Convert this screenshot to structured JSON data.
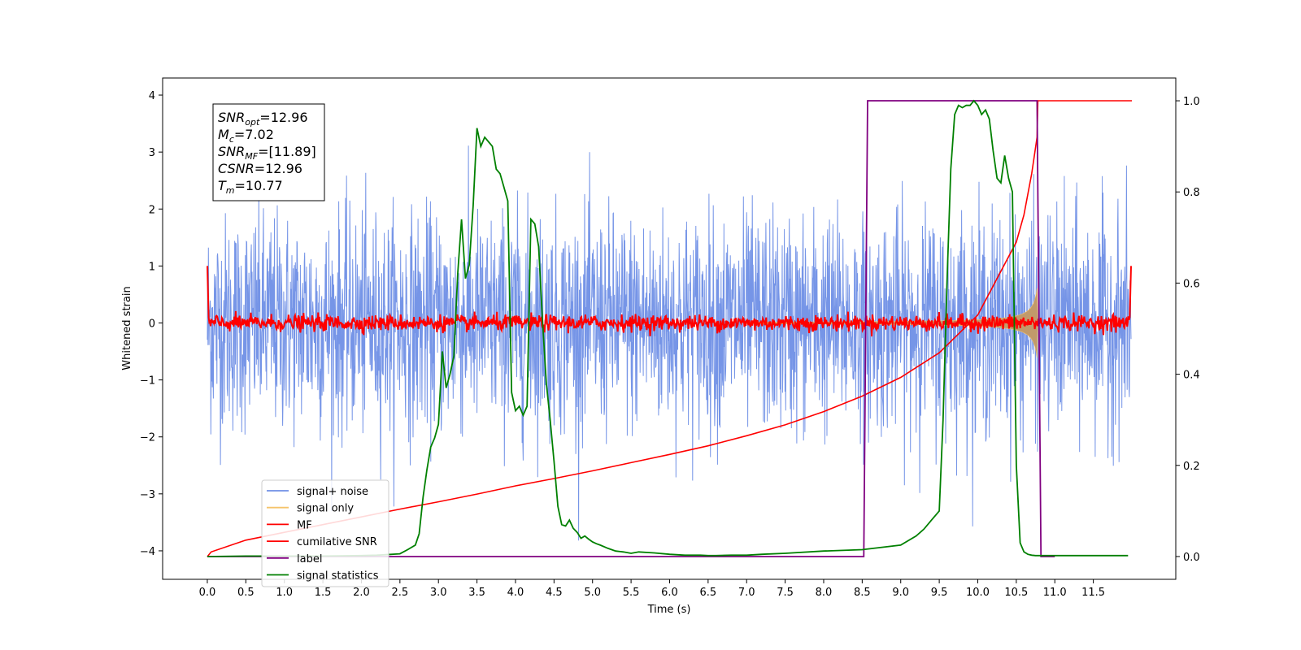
{
  "chart_data": {
    "type": "line",
    "xlabel": "Time (s)",
    "ylabel": "Whitened strain",
    "x_ticks": [
      "0.0",
      "0.5",
      "1.0",
      "1.5",
      "2.0",
      "2.5",
      "3.0",
      "3.5",
      "4.0",
      "4.5",
      "5.0",
      "5.5",
      "6.0",
      "6.5",
      "7.0",
      "7.5",
      "8.0",
      "8.5",
      "9.0",
      "9.5",
      "10.0",
      "10.5",
      "11.0",
      "11.5"
    ],
    "x_tick_values": [
      0,
      0.5,
      1,
      1.5,
      2,
      2.5,
      3,
      3.5,
      4,
      4.5,
      5,
      5.5,
      6,
      6.5,
      7,
      7.5,
      8,
      8.5,
      9,
      9.5,
      10,
      10.5,
      11,
      11.5
    ],
    "y_left_ticks": [
      "−4",
      "−3",
      "−2",
      "−1",
      "0",
      "1",
      "2",
      "3",
      "4"
    ],
    "y_left_tick_values": [
      -4,
      -3,
      -2,
      -1,
      0,
      1,
      2,
      3,
      4
    ],
    "y_right_ticks": [
      "0.0",
      "0.2",
      "0.4",
      "0.6",
      "0.8",
      "1.0"
    ],
    "y_right_tick_values": [
      0,
      0.2,
      0.4,
      0.6,
      0.8,
      1.0
    ],
    "xlim": [
      -0.58,
      12.57
    ],
    "ylim_left": [
      -4.5,
      4.3
    ],
    "ylim_right": [
      -0.05,
      1.05
    ],
    "x_range": [
      0,
      11.99
    ],
    "legend_position": "lower left",
    "colors": {
      "signal_noise": "#6f8fe6",
      "signal_only": "#f5c36a",
      "signal_fill": "#c19a6b",
      "mf": "#ff0000",
      "cumulative_snr": "#ff0000",
      "label": "#800080",
      "signal_statistics": "#008000"
    },
    "stats_box": [
      {
        "base": "SNR",
        "sub": "opt",
        "value": "=12.96"
      },
      {
        "base": "M",
        "sub": "c",
        "value": "=7.02"
      },
      {
        "base": "SNR",
        "sub": "MF",
        "value": "=[11.89]"
      },
      {
        "base": "CSNR",
        "sub": "",
        "value": "=12.96"
      },
      {
        "base": "T",
        "sub": "m",
        "value": "=10.77"
      }
    ],
    "series": [
      {
        "name": "signal+ noise",
        "axis": "left",
        "description": "noisy whitened strain, roughly within ±2.5 with spikes to ±3.7"
      },
      {
        "name": "signal only",
        "axis": "left",
        "description": "chirp envelope growing from 0 to about ±0.9 between 7.0 s and 10.77 s"
      },
      {
        "name": "MF",
        "axis": "left",
        "description": "matched filter output near 0 (about ±0.15), edges at 1.0"
      },
      {
        "name": "cumilative SNR",
        "axis": "right",
        "x": [
          0,
          0.05,
          0.5,
          1.0,
          1.5,
          2.0,
          2.5,
          3.0,
          3.5,
          4.0,
          4.5,
          5.0,
          5.5,
          6.0,
          6.5,
          7.0,
          7.5,
          8.0,
          8.5,
          9.0,
          9.5,
          10.0,
          10.5,
          10.6,
          10.7,
          10.77,
          10.78,
          12.0
        ],
        "y": [
          0.0,
          0.01,
          0.036,
          0.053,
          0.07,
          0.087,
          0.104,
          0.12,
          0.137,
          0.155,
          0.171,
          0.188,
          0.206,
          0.224,
          0.243,
          0.265,
          0.289,
          0.318,
          0.352,
          0.393,
          0.447,
          0.53,
          0.69,
          0.75,
          0.84,
          0.92,
          1.0,
          1.0
        ]
      },
      {
        "name": "label",
        "axis": "right",
        "x": [
          0,
          8.52,
          8.57,
          10.77,
          10.82,
          11.0
        ],
        "y": [
          0,
          0,
          1,
          1,
          0,
          0
        ]
      },
      {
        "name": "signal statistics",
        "axis": "right",
        "x": [
          0,
          0.5,
          1.0,
          1.5,
          2.0,
          2.2,
          2.5,
          2.6,
          2.7,
          2.75,
          2.8,
          2.85,
          2.9,
          2.95,
          3.0,
          3.05,
          3.1,
          3.15,
          3.2,
          3.25,
          3.3,
          3.35,
          3.4,
          3.45,
          3.5,
          3.55,
          3.6,
          3.65,
          3.7,
          3.75,
          3.8,
          3.85,
          3.9,
          3.95,
          4.0,
          4.05,
          4.1,
          4.15,
          4.2,
          4.25,
          4.3,
          4.35,
          4.4,
          4.45,
          4.5,
          4.55,
          4.6,
          4.65,
          4.7,
          4.75,
          4.8,
          4.85,
          4.9,
          4.95,
          5.0,
          5.05,
          5.1,
          5.2,
          5.3,
          5.4,
          5.5,
          5.6,
          5.8,
          6.0,
          6.2,
          6.4,
          6.5,
          6.6,
          6.8,
          6.85,
          6.9,
          7.0,
          7.2,
          7.5,
          8.0,
          8.5,
          9.0,
          9.2,
          9.3,
          9.4,
          9.5,
          9.55,
          9.6,
          9.65,
          9.7,
          9.75,
          9.8,
          9.85,
          9.9,
          9.95,
          10.0,
          10.05,
          10.1,
          10.15,
          10.2,
          10.25,
          10.3,
          10.35,
          10.4,
          10.45,
          10.5,
          10.55,
          10.6,
          10.65,
          10.7,
          10.75,
          10.8,
          10.85,
          10.9,
          11.0,
          11.5,
          11.95
        ],
        "y": [
          0.0,
          0.001,
          0.001,
          0.001,
          0.002,
          0.003,
          0.006,
          0.015,
          0.025,
          0.05,
          0.13,
          0.19,
          0.24,
          0.26,
          0.29,
          0.45,
          0.37,
          0.4,
          0.44,
          0.62,
          0.74,
          0.61,
          0.64,
          0.77,
          0.94,
          0.9,
          0.92,
          0.91,
          0.9,
          0.85,
          0.84,
          0.81,
          0.78,
          0.36,
          0.32,
          0.33,
          0.31,
          0.33,
          0.74,
          0.73,
          0.68,
          0.52,
          0.38,
          0.3,
          0.21,
          0.11,
          0.07,
          0.067,
          0.08,
          0.062,
          0.053,
          0.04,
          0.045,
          0.038,
          0.032,
          0.028,
          0.025,
          0.018,
          0.012,
          0.01,
          0.007,
          0.01,
          0.008,
          0.005,
          0.003,
          0.003,
          0.002,
          0.002,
          0.003,
          0.003,
          0.003,
          0.003,
          0.005,
          0.007,
          0.012,
          0.015,
          0.025,
          0.045,
          0.06,
          0.08,
          0.1,
          0.3,
          0.6,
          0.85,
          0.97,
          0.99,
          0.985,
          0.99,
          0.99,
          1.0,
          0.99,
          0.97,
          0.98,
          0.96,
          0.89,
          0.83,
          0.82,
          0.88,
          0.83,
          0.8,
          0.2,
          0.03,
          0.01,
          0.005,
          0.003,
          0.002,
          0.002,
          0.002,
          0.002,
          0.002,
          0.002,
          0.002
        ]
      }
    ]
  }
}
